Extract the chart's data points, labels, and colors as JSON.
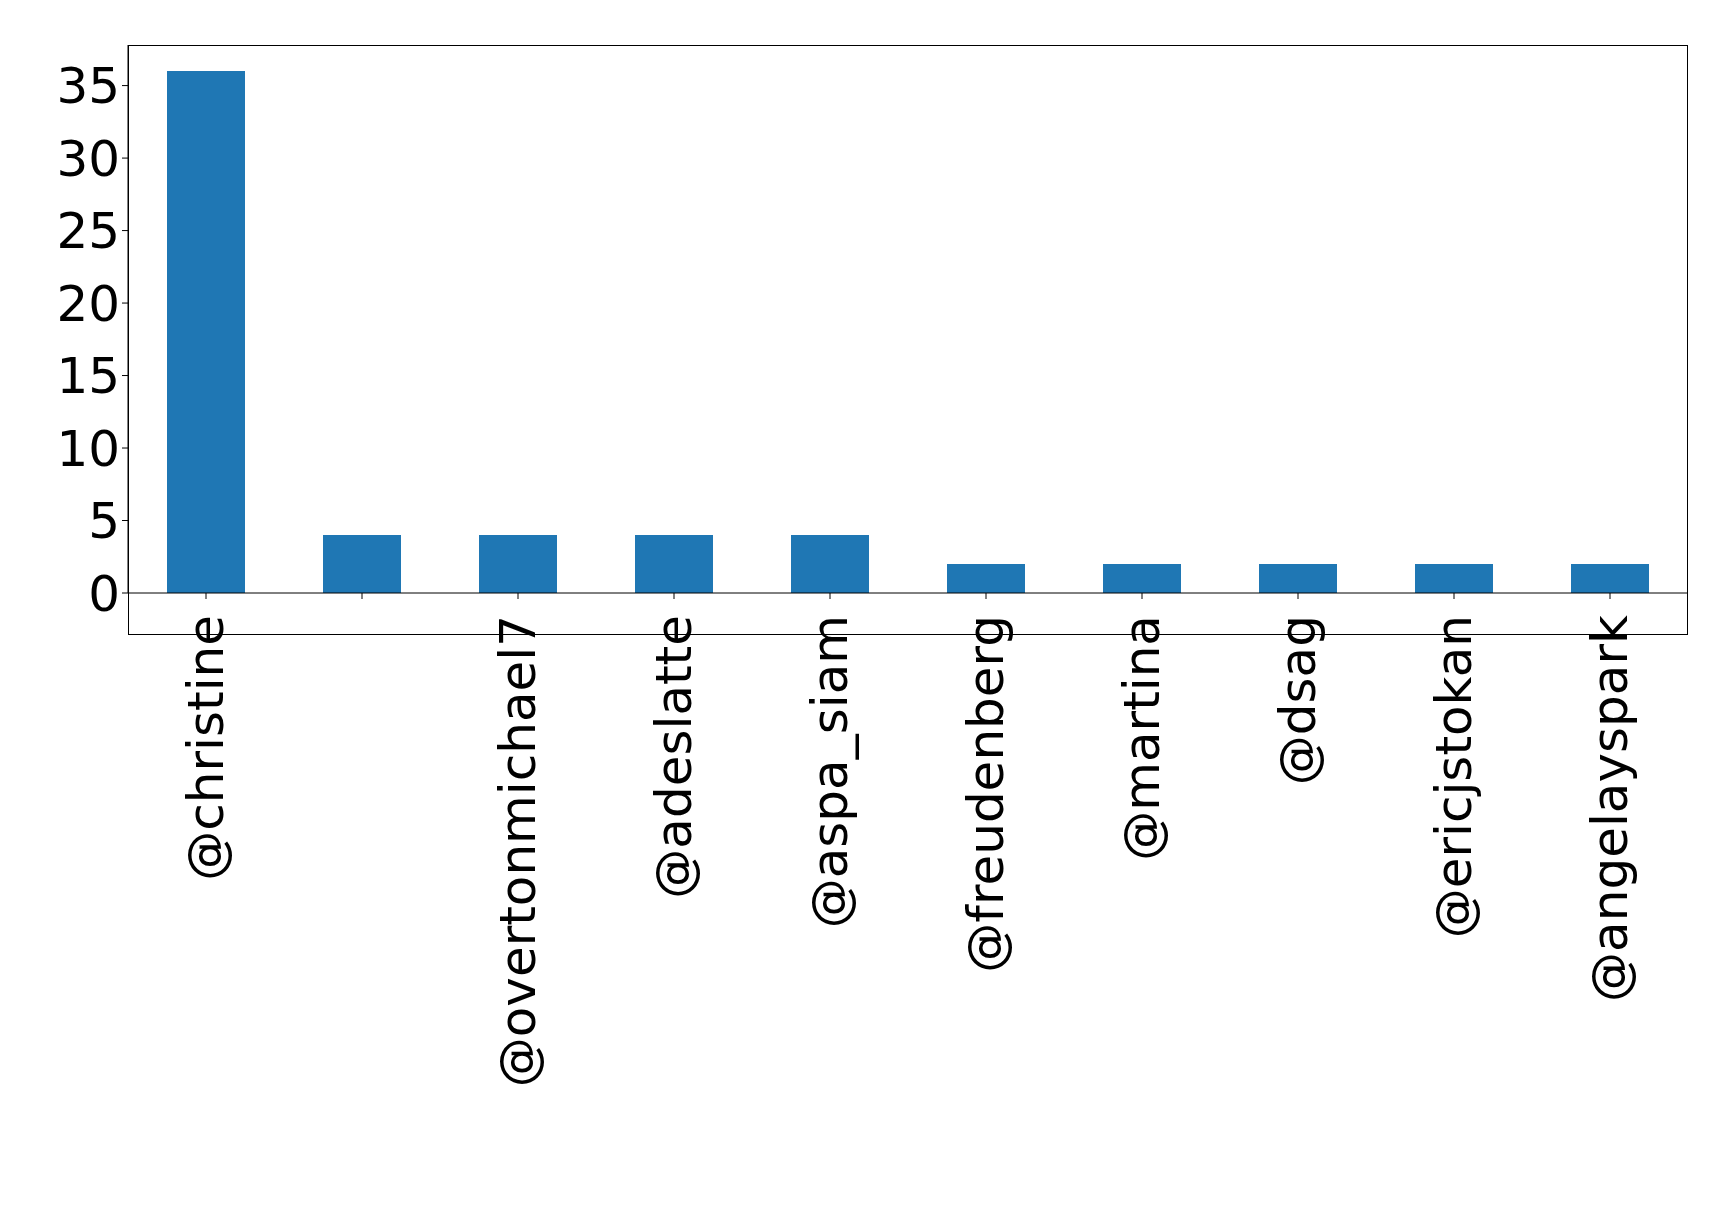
{
  "chart_data": {
    "type": "bar",
    "categories": [
      "@christine",
      null,
      "@overtonmichael7",
      "@adeslatte",
      "@aspa_siam",
      "@freudenberg",
      "@martina",
      "@dsag",
      "@ericjstokan",
      "@angelayspark"
    ],
    "values": [
      36,
      4,
      4,
      4,
      4,
      2,
      2,
      2,
      2,
      2
    ],
    "color": "#1f77b4",
    "ylim": [
      0,
      37.8
    ],
    "yticks": [
      0,
      5,
      10,
      15,
      20,
      25,
      30,
      35
    ],
    "grid": false,
    "legend": false
  }
}
